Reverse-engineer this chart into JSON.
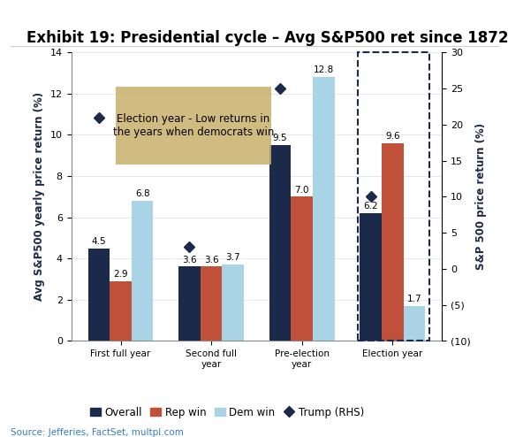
{
  "title": "Exhibit 19: Presidential cycle – Avg S&P500 ret since 1872",
  "categories": [
    "First full year",
    "Second full\nyear",
    "Pre-election\nyear",
    "Election year"
  ],
  "overall": [
    4.5,
    3.6,
    9.5,
    6.2
  ],
  "rep_win": [
    2.9,
    3.6,
    7.0,
    9.6
  ],
  "dem_win": [
    6.8,
    3.7,
    12.8,
    1.7
  ],
  "trump_rhs": [
    21,
    3,
    25,
    10
  ],
  "bar_colors": {
    "overall": "#1b2a4a",
    "rep_win": "#c0503a",
    "dem_win": "#a8d4e6"
  },
  "trump_color": "#1b2a4a",
  "annotation_text": "Election year - Low returns in\nthe years when democrats win",
  "annotation_bg": "#c8b06a",
  "ylabel_left": "Avg S&P500 yearly price return (%)",
  "ylabel_right": "S&P 500 price return (%)",
  "ylim_left": [
    0,
    14
  ],
  "ylim_right": [
    -10,
    30
  ],
  "source": "Source: Jefferies, FactSet, multpl.com",
  "legend_labels": [
    "Overall",
    "Rep win",
    "Dem win",
    "Trump (RHS)"
  ],
  "title_fontsize": 12,
  "axis_fontsize": 8.5,
  "tick_fontsize": 8
}
